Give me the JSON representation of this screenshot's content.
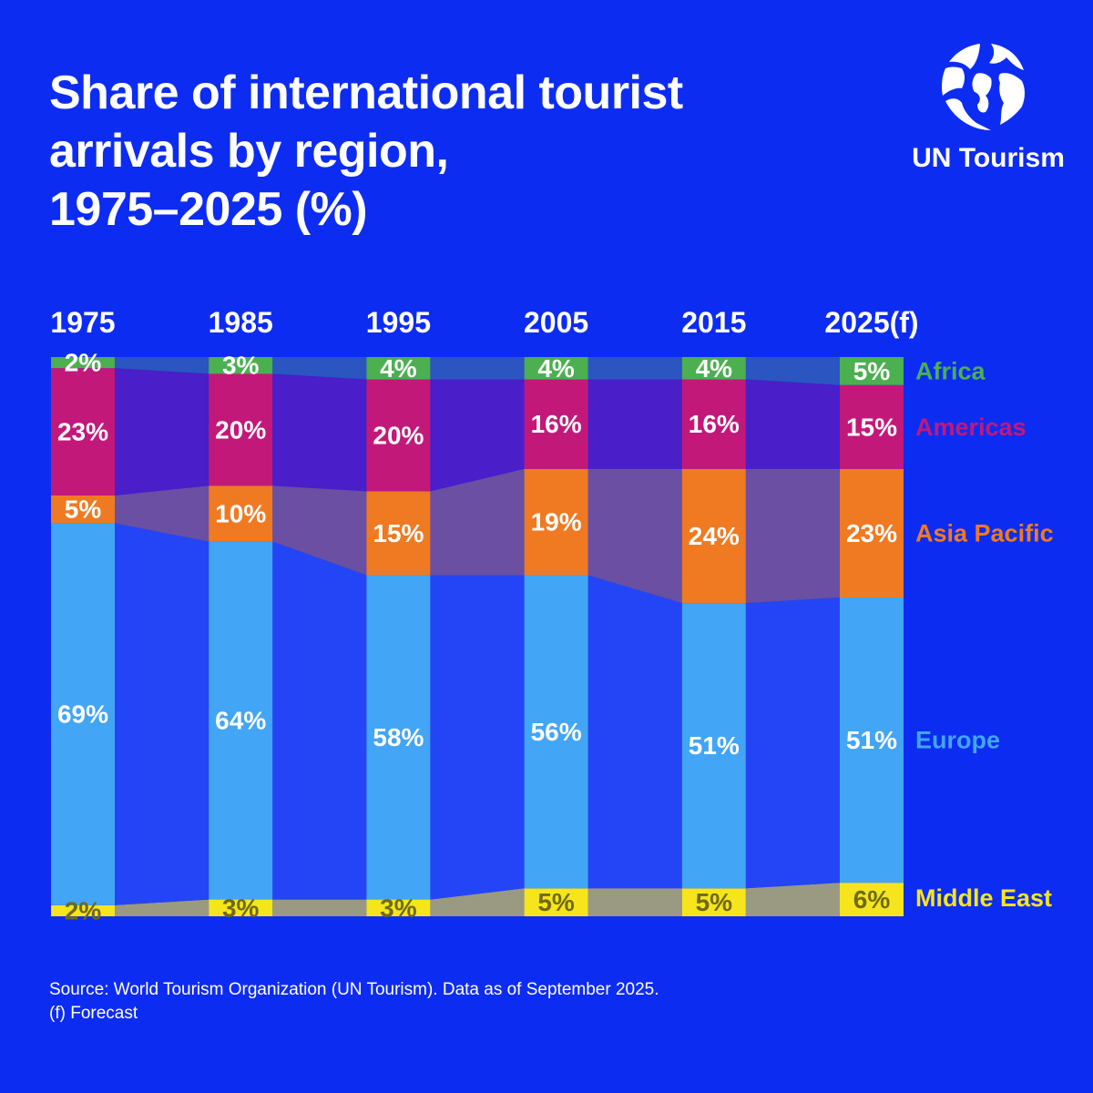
{
  "title": {
    "line1": "Share of international tourist",
    "line2": "arrivals by region,",
    "line3": "1975–2025 (%)"
  },
  "logo": {
    "text": "UN Tourism",
    "icon": "globe-icon"
  },
  "footnote": {
    "source": "Source: World Tourism Organization (UN Tourism). Data as of September 2025.",
    "forecast": "(f) Forecast"
  },
  "colors": {
    "background": "#0d2cf2",
    "Africa": "#4caf50",
    "Americas": "#c2187a",
    "Asia Pacific": "#ef7a22",
    "Europe": "#42a5f5",
    "Middle East": "#f6e51c"
  },
  "chart_data": {
    "type": "bar",
    "stacked": true,
    "categories": [
      "1975",
      "1985",
      "1995",
      "2005",
      "2015",
      "2025(f)"
    ],
    "series": [
      {
        "name": "Middle East",
        "values": [
          2,
          3,
          3,
          5,
          5,
          6
        ],
        "labels": [
          "2%",
          "3%",
          "3%",
          "5%",
          "5%",
          "6%"
        ]
      },
      {
        "name": "Europe",
        "values": [
          69,
          64,
          58,
          56,
          51,
          51
        ],
        "labels": [
          "69%",
          "64%",
          "58%",
          "56%",
          "51%",
          "51%"
        ]
      },
      {
        "name": "Asia Pacific",
        "values": [
          5,
          10,
          15,
          19,
          24,
          23
        ],
        "labels": [
          "5%",
          "10%",
          "15%",
          "19%",
          "24%",
          "23%"
        ]
      },
      {
        "name": "Americas",
        "values": [
          23,
          20,
          20,
          16,
          16,
          15
        ],
        "labels": [
          "23%",
          "20%",
          "20%",
          "16%",
          "16%",
          "15%"
        ]
      },
      {
        "name": "Africa",
        "values": [
          2,
          3,
          4,
          4,
          4,
          5
        ],
        "labels": [
          "2%",
          "3%",
          "4%",
          "4%",
          "4%",
          "5%"
        ]
      }
    ],
    "ylim": [
      0,
      100
    ],
    "legend": "right",
    "grid": false
  }
}
